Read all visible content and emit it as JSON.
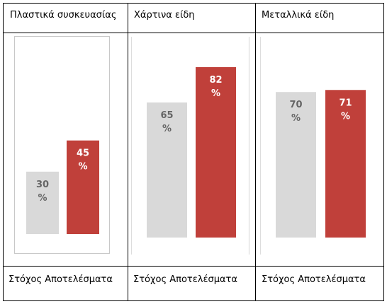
{
  "chart_data": [
    {
      "type": "bar",
      "title": "Πλαστικά συσκευασίας",
      "categories": [
        "Στόχος",
        "Αποτελέσματα"
      ],
      "values": [
        30,
        45
      ],
      "value_labels": [
        "30 %",
        "45 %"
      ],
      "ylim": [
        0,
        100
      ],
      "colors": [
        "#d9d9d9",
        "#c0403a"
      ],
      "label_colors": [
        "#666666",
        "#ffffff"
      ]
    },
    {
      "type": "bar",
      "title": "Χάρτινα είδη",
      "categories": [
        "Στόχος",
        "Αποτελέσματα"
      ],
      "values": [
        65,
        82
      ],
      "value_labels": [
        "65 %",
        "82 %"
      ],
      "ylim": [
        0,
        100
      ],
      "colors": [
        "#d9d9d9",
        "#c0403a"
      ],
      "label_colors": [
        "#666666",
        "#ffffff"
      ]
    },
    {
      "type": "bar",
      "title": "Μεταλλικά είδη",
      "categories": [
        "Στόχος",
        "Αποτελέσματα"
      ],
      "values": [
        70,
        71
      ],
      "value_labels": [
        "70 %",
        "71 %"
      ],
      "ylim": [
        0,
        100
      ],
      "colors": [
        "#d9d9d9",
        "#c0403a"
      ],
      "label_colors": [
        "#666666",
        "#ffffff"
      ]
    }
  ],
  "footer_labels": [
    "Στόχος Αποτελέσματα",
    "Στόχος Αποτελέσματα",
    "Στόχος Αποτελέσματα"
  ]
}
